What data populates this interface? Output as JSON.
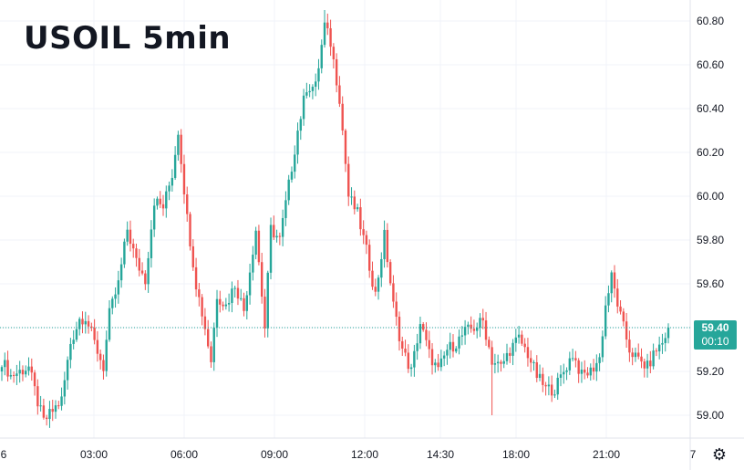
{
  "title": "USOIL 5min",
  "colors": {
    "up": "#26a69a",
    "down": "#ef5350",
    "grid": "#f0f3fa",
    "axis_text": "#131722",
    "price_line": "#26a69a"
  },
  "price_badge": {
    "price": "59.40",
    "countdown": "00:10"
  },
  "settings_icon": "gear-icon",
  "chart_data": {
    "type": "candlestick",
    "x_tick_labels": [
      "6",
      "03:00",
      "06:00",
      "09:00",
      "12:00",
      "14:30",
      "18:00",
      "21:00",
      "7"
    ],
    "y_tick_labels": [
      "59.00",
      "59.20",
      "59.40",
      "59.60",
      "59.80",
      "60.00",
      "60.20",
      "60.40",
      "60.60",
      "60.80"
    ],
    "ylim": [
      58.92,
      60.87
    ],
    "last_price": 59.4,
    "grid": true,
    "price_path_anchors": [
      [
        0,
        59.25
      ],
      [
        3,
        59.18
      ],
      [
        6,
        59.2
      ],
      [
        9,
        59.22
      ],
      [
        12,
        59.06
      ],
      [
        14,
        58.97
      ],
      [
        17,
        59.02
      ],
      [
        20,
        59.07
      ],
      [
        23,
        59.33
      ],
      [
        26,
        59.44
      ],
      [
        28,
        59.45
      ],
      [
        31,
        59.33
      ],
      [
        34,
        59.22
      ],
      [
        36,
        59.46
      ],
      [
        39,
        59.6
      ],
      [
        42,
        59.85
      ],
      [
        45,
        59.7
      ],
      [
        48,
        59.62
      ],
      [
        51,
        59.98
      ],
      [
        54,
        59.95
      ],
      [
        57,
        60.1
      ],
      [
        59,
        60.3
      ],
      [
        62,
        59.9
      ],
      [
        65,
        59.6
      ],
      [
        68,
        59.4
      ],
      [
        70,
        59.25
      ],
      [
        72,
        59.55
      ],
      [
        75,
        59.5
      ],
      [
        78,
        59.6
      ],
      [
        81,
        59.48
      ],
      [
        85,
        59.85
      ],
      [
        88,
        59.4
      ],
      [
        90,
        59.85
      ],
      [
        93,
        59.8
      ],
      [
        96,
        60.05
      ],
      [
        99,
        60.3
      ],
      [
        102,
        60.5
      ],
      [
        105,
        60.5
      ],
      [
        108,
        60.78
      ],
      [
        110,
        60.7
      ],
      [
        113,
        60.45
      ],
      [
        116,
        60.0
      ],
      [
        119,
        59.92
      ],
      [
        122,
        59.75
      ],
      [
        125,
        59.55
      ],
      [
        128,
        59.82
      ],
      [
        131,
        59.5
      ],
      [
        134,
        59.3
      ],
      [
        137,
        59.2
      ],
      [
        140,
        59.42
      ],
      [
        143,
        59.28
      ],
      [
        146,
        59.2
      ],
      [
        149,
        59.3
      ],
      [
        152,
        59.33
      ],
      [
        155,
        59.38
      ],
      [
        158,
        59.4
      ],
      [
        161,
        59.43
      ],
      [
        164,
        59.25
      ],
      [
        167,
        59.22
      ],
      [
        170,
        59.3
      ],
      [
        173,
        59.35
      ],
      [
        176,
        59.28
      ],
      [
        179,
        59.18
      ],
      [
        182,
        59.12
      ],
      [
        185,
        59.12
      ],
      [
        188,
        59.2
      ],
      [
        191,
        59.28
      ],
      [
        194,
        59.18
      ],
      [
        197,
        59.2
      ],
      [
        200,
        59.26
      ],
      [
        202,
        59.5
      ],
      [
        204,
        59.63
      ],
      [
        207,
        59.45
      ],
      [
        210,
        59.3
      ],
      [
        213,
        59.25
      ],
      [
        216,
        59.22
      ],
      [
        219,
        59.3
      ],
      [
        221,
        59.33
      ],
      [
        223,
        59.4
      ]
    ],
    "notable_extremes": {
      "high": 60.85,
      "low": 58.98,
      "spike_low_near_1730": 59.0
    }
  }
}
